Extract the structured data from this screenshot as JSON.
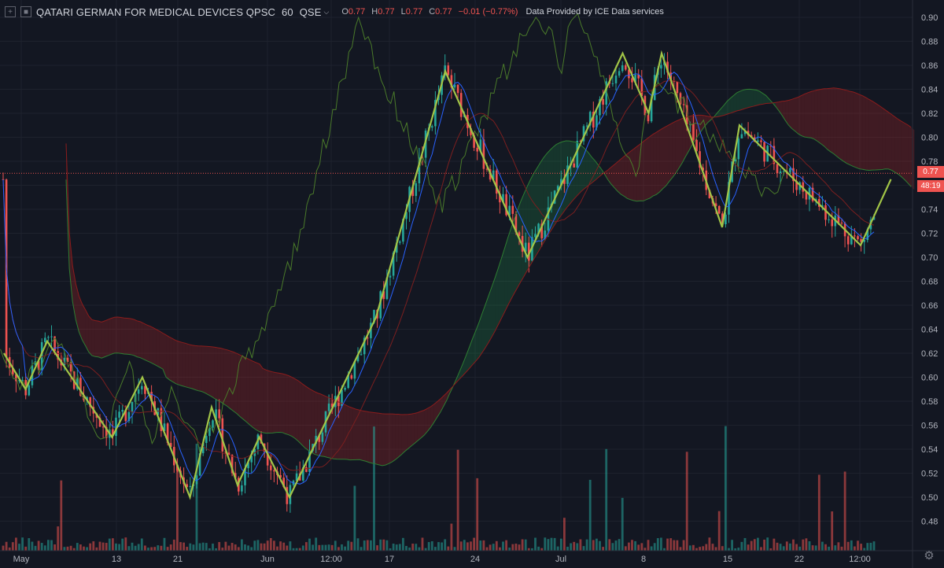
{
  "header": {
    "symbol": "QATARI GERMAN FOR MEDICAL DEVICES QPSC",
    "interval": "60",
    "exchange": "QSE",
    "ohlc": [
      {
        "k": "O",
        "v": "0.77"
      },
      {
        "k": "H",
        "v": "0.77"
      },
      {
        "k": "L",
        "v": "0.77"
      },
      {
        "k": "C",
        "v": "0.77"
      }
    ],
    "change": "−0.01 (−0.77%)",
    "provider": "Data Provided by ICE Data services"
  },
  "price_tag": {
    "price": "0.77",
    "countdown": "48:19"
  },
  "colors": {
    "bg": "#131722",
    "up": "#26a69a",
    "down": "#ef5350",
    "zigzag": "#a2c547",
    "base": "#2962ff"
  },
  "chart_data": {
    "type": "candlestick",
    "title": "QATARI GERMAN FOR MEDICAL DEVICES QPSC",
    "ylim": [
      0.46,
      0.91
    ],
    "y_ticks": [
      "0.48",
      "0.50",
      "0.52",
      "0.54",
      "0.56",
      "0.58",
      "0.60",
      "0.62",
      "0.64",
      "0.66",
      "0.68",
      "0.70",
      "0.72",
      "0.74",
      "0.76",
      "0.78",
      "0.80",
      "0.82",
      "0.84",
      "0.86",
      "0.88",
      "0.90"
    ],
    "x_ticks": [
      "May",
      "13",
      "21",
      "Jun",
      "12:00",
      "17",
      "24",
      "Jul",
      "8",
      "15",
      "22",
      "12:00"
    ],
    "last_price": 0.77,
    "zigzag_y": [
      0.62,
      0.59,
      0.63,
      0.55,
      0.6,
      0.5,
      0.575,
      0.51,
      0.55,
      0.5,
      0.65,
      0.855,
      0.7,
      0.87,
      0.82,
      0.87,
      0.725,
      0.81,
      0.71,
      0.765
    ],
    "zigzag_x_ticks": [
      0,
      0.5,
      1,
      2.5,
      3.2,
      4.3,
      4.8,
      5.4,
      5.9,
      6.6,
      8.6,
      10.2,
      12.1,
      14.3,
      14.9,
      15.2,
      16.6,
      17.0,
      19.8,
      20.5
    ],
    "indicators": [
      "Ichimoku Cloud",
      "ZigZag",
      "Volume"
    ]
  }
}
